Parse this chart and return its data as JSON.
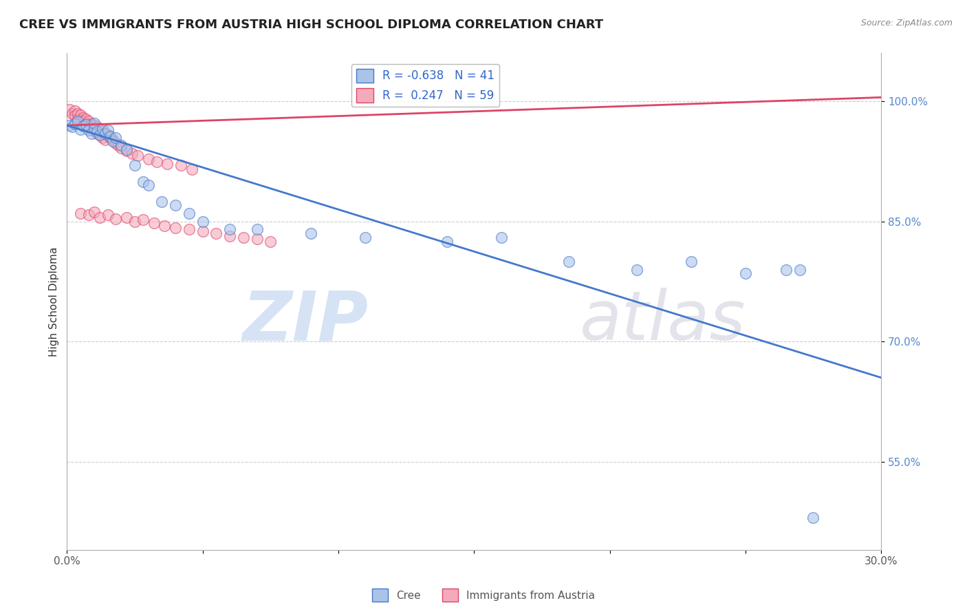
{
  "title": "CREE VS IMMIGRANTS FROM AUSTRIA HIGH SCHOOL DIPLOMA CORRELATION CHART",
  "source": "Source: ZipAtlas.com",
  "ylabel": "High School Diploma",
  "xlim": [
    0.0,
    0.3
  ],
  "ylim": [
    0.44,
    1.06
  ],
  "xticks": [
    0.0,
    0.05,
    0.1,
    0.15,
    0.2,
    0.25,
    0.3
  ],
  "xtick_labels": [
    "0.0%",
    "",
    "",
    "",
    "",
    "",
    "30.0%"
  ],
  "yticks": [
    0.55,
    0.7,
    0.85,
    1.0
  ],
  "ytick_labels": [
    "55.0%",
    "70.0%",
    "85.0%",
    "100.0%"
  ],
  "legend_cree_R": "-0.638",
  "legend_cree_N": "41",
  "legend_austria_R": "0.247",
  "legend_austria_N": "59",
  "cree_color": "#aac4e8",
  "austria_color": "#f4aabb",
  "trendline_cree_color": "#4477cc",
  "trendline_austria_color": "#dd4466",
  "background_color": "#ffffff",
  "grid_color": "#cccccc",
  "cree_x": [
    0.001,
    0.002,
    0.003,
    0.004,
    0.005,
    0.006,
    0.007,
    0.008,
    0.009,
    0.01,
    0.01,
    0.011,
    0.012,
    0.013,
    0.014,
    0.015,
    0.016,
    0.017,
    0.018,
    0.02,
    0.022,
    0.025,
    0.028,
    0.03,
    0.035,
    0.04,
    0.045,
    0.05,
    0.06,
    0.07,
    0.09,
    0.11,
    0.14,
    0.16,
    0.185,
    0.21,
    0.23,
    0.25,
    0.265,
    0.27,
    0.275
  ],
  "cree_y": [
    0.97,
    0.968,
    0.972,
    0.975,
    0.965,
    0.969,
    0.971,
    0.964,
    0.96,
    0.967,
    0.973,
    0.962,
    0.958,
    0.966,
    0.96,
    0.964,
    0.956,
    0.95,
    0.955,
    0.945,
    0.94,
    0.92,
    0.9,
    0.895,
    0.875,
    0.87,
    0.86,
    0.85,
    0.84,
    0.84,
    0.835,
    0.83,
    0.825,
    0.83,
    0.8,
    0.79,
    0.8,
    0.785,
    0.79,
    0.79,
    0.48
  ],
  "austria_x": [
    0.001,
    0.002,
    0.003,
    0.003,
    0.004,
    0.004,
    0.005,
    0.005,
    0.006,
    0.006,
    0.007,
    0.007,
    0.008,
    0.008,
    0.009,
    0.009,
    0.01,
    0.01,
    0.011,
    0.011,
    0.012,
    0.012,
    0.013,
    0.013,
    0.014,
    0.014,
    0.015,
    0.016,
    0.017,
    0.018,
    0.019,
    0.02,
    0.022,
    0.024,
    0.026,
    0.03,
    0.033,
    0.037,
    0.042,
    0.046,
    0.005,
    0.008,
    0.01,
    0.012,
    0.015,
    0.018,
    0.022,
    0.025,
    0.028,
    0.032,
    0.036,
    0.04,
    0.045,
    0.05,
    0.055,
    0.06,
    0.065,
    0.07,
    0.075
  ],
  "austria_y": [
    0.99,
    0.985,
    0.988,
    0.982,
    0.985,
    0.978,
    0.983,
    0.976,
    0.98,
    0.975,
    0.978,
    0.972,
    0.975,
    0.968,
    0.972,
    0.965,
    0.97,
    0.963,
    0.968,
    0.96,
    0.965,
    0.958,
    0.963,
    0.955,
    0.96,
    0.952,
    0.958,
    0.955,
    0.952,
    0.948,
    0.945,
    0.942,
    0.938,
    0.935,
    0.932,
    0.928,
    0.925,
    0.922,
    0.92,
    0.915,
    0.86,
    0.858,
    0.862,
    0.855,
    0.858,
    0.853,
    0.855,
    0.85,
    0.852,
    0.848,
    0.845,
    0.842,
    0.84,
    0.838,
    0.835,
    0.832,
    0.83,
    0.828,
    0.825
  ],
  "trendline_cree_x0": 0.0,
  "trendline_cree_y0": 0.97,
  "trendline_cree_x1": 0.3,
  "trendline_cree_y1": 0.655,
  "trendline_austria_x0": 0.0,
  "trendline_austria_y0": 0.97,
  "trendline_austria_x1": 0.3,
  "trendline_austria_y1": 1.005
}
